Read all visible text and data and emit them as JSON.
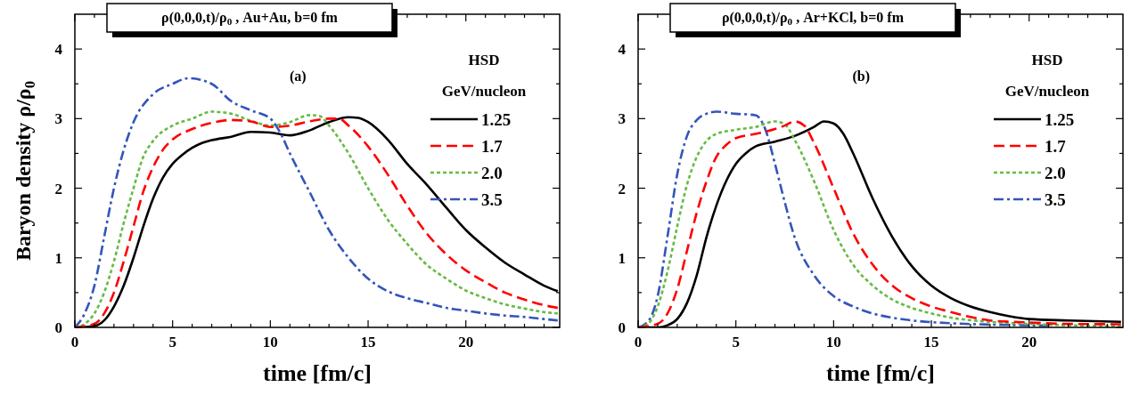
{
  "chart_data": [
    {
      "type": "line",
      "title": "ρ(0,0,0,t)/ρ$_{0}$ ,   Au+Au, b=0 fm",
      "xlabel": "time [fm/c]",
      "ylabel": "Baryon density ρ/ρ$_{0}$",
      "legend_title": "GeV/nucleon",
      "annotations": [
        "(a)",
        "HSD"
      ],
      "legend": "top right",
      "grid": false,
      "xlim": [
        0,
        24.8
      ],
      "ylim": [
        0,
        4.5
      ],
      "xticks": [
        0,
        {
          "value": 1,
          "label": null
        },
        {
          "value": 2,
          "label": null
        },
        {
          "value": 3,
          "label": null
        },
        {
          "value": 4,
          "label": null
        },
        5,
        {
          "value": 6,
          "label": null
        },
        {
          "value": 7,
          "label": null
        },
        {
          "value": 8,
          "label": null
        },
        {
          "value": 9,
          "label": null
        },
        10,
        {
          "value": 11,
          "label": null
        },
        {
          "value": 12,
          "label": null
        },
        {
          "value": 13,
          "label": null
        },
        {
          "value": 14,
          "label": null
        },
        15,
        {
          "value": 16,
          "label": null
        },
        {
          "value": 17,
          "label": null
        },
        {
          "value": 18,
          "label": null
        },
        {
          "value": 19,
          "label": null
        },
        20,
        {
          "value": 21,
          "label": null
        },
        {
          "value": 22,
          "label": null
        },
        {
          "value": 23,
          "label": null
        },
        {
          "value": 24,
          "label": null
        }
      ],
      "yticks": [
        0,
        {
          "value": 0.5,
          "label": null
        },
        1,
        {
          "value": 1.5,
          "label": null
        },
        2,
        {
          "value": 2.5,
          "label": null
        },
        3,
        {
          "value": 3.5,
          "label": null
        },
        4
      ],
      "series": [
        {
          "name": "1.25",
          "color": "#000000",
          "line_style": "solid",
          "x": [
            0,
            1,
            1.5,
            2,
            2.5,
            3,
            3.5,
            4,
            4.5,
            5,
            5.5,
            6,
            6.5,
            7,
            8,
            9,
            10,
            11,
            12,
            13,
            14,
            14.5,
            15,
            16,
            17,
            18,
            19,
            20,
            21,
            22,
            23,
            24,
            24.7
          ],
          "values": [
            0,
            0.02,
            0.1,
            0.3,
            0.6,
            1.0,
            1.45,
            1.85,
            2.15,
            2.35,
            2.48,
            2.58,
            2.65,
            2.69,
            2.74,
            2.81,
            2.8,
            2.76,
            2.83,
            2.95,
            3.02,
            3.01,
            2.95,
            2.7,
            2.35,
            2.05,
            1.72,
            1.4,
            1.15,
            0.93,
            0.76,
            0.6,
            0.52
          ]
        },
        {
          "name": "1.7",
          "color": "#ff0000",
          "line_style": "dashed",
          "x": [
            0,
            1,
            1.5,
            2,
            2.5,
            3,
            3.5,
            4,
            4.5,
            5,
            6,
            7,
            8,
            9,
            10,
            11,
            12,
            13,
            13.5,
            14,
            15,
            16,
            17,
            18,
            19,
            20,
            21,
            22,
            23,
            24,
            24.7
          ],
          "values": [
            0,
            0.05,
            0.2,
            0.5,
            0.95,
            1.45,
            1.95,
            2.3,
            2.55,
            2.7,
            2.85,
            2.94,
            2.98,
            2.96,
            2.88,
            2.9,
            2.96,
            3.0,
            3.0,
            2.9,
            2.6,
            2.2,
            1.75,
            1.35,
            1.05,
            0.82,
            0.65,
            0.5,
            0.4,
            0.32,
            0.28
          ]
        },
        {
          "name": "2.0",
          "color": "#66bb44",
          "line_style": "dotted",
          "x": [
            0,
            0.5,
            1,
            1.5,
            2,
            2.5,
            3,
            3.5,
            4,
            5,
            6,
            7,
            8,
            9,
            10,
            11,
            12,
            12.5,
            13,
            14,
            15,
            16,
            17,
            18,
            19,
            20,
            21,
            22,
            23,
            24,
            24.7
          ],
          "values": [
            0,
            0.05,
            0.2,
            0.5,
            0.95,
            1.5,
            2.0,
            2.45,
            2.68,
            2.9,
            3.0,
            3.1,
            3.07,
            2.97,
            2.9,
            2.95,
            3.05,
            3.04,
            2.9,
            2.5,
            2.0,
            1.55,
            1.2,
            0.9,
            0.7,
            0.53,
            0.42,
            0.33,
            0.27,
            0.22,
            0.2
          ]
        },
        {
          "name": "3.5",
          "color": "#3355bb",
          "line_style": "dashdot",
          "x": [
            0,
            0.5,
            1,
            1.5,
            2,
            2.5,
            3,
            4,
            5,
            5.8,
            7,
            8,
            9,
            10,
            10.5,
            11,
            12,
            13,
            14,
            15,
            16,
            17,
            18,
            19,
            20,
            21,
            22,
            23,
            24,
            24.7
          ],
          "values": [
            0,
            0.2,
            0.6,
            1.3,
            2.0,
            2.55,
            2.95,
            3.35,
            3.5,
            3.58,
            3.5,
            3.25,
            3.12,
            3.0,
            2.8,
            2.5,
            1.95,
            1.4,
            1.0,
            0.7,
            0.52,
            0.42,
            0.35,
            0.28,
            0.24,
            0.2,
            0.17,
            0.15,
            0.12,
            0.1
          ]
        }
      ]
    },
    {
      "type": "line",
      "title": "ρ(0,0,0,t)/ρ$_{0}$ ,   Ar+KCl, b=0 fm",
      "xlabel": "time [fm/c]",
      "legend_title": "GeV/nucleon",
      "annotations": [
        "(b)",
        "HSD"
      ],
      "legend": "top right",
      "grid": false,
      "xlim": [
        0,
        24.8
      ],
      "ylim": [
        0,
        4.5
      ],
      "xticks": [
        0,
        {
          "value": 1,
          "label": null
        },
        {
          "value": 2,
          "label": null
        },
        {
          "value": 3,
          "label": null
        },
        {
          "value": 4,
          "label": null
        },
        5,
        {
          "value": 6,
          "label": null
        },
        {
          "value": 7,
          "label": null
        },
        {
          "value": 8,
          "label": null
        },
        {
          "value": 9,
          "label": null
        },
        10,
        {
          "value": 11,
          "label": null
        },
        {
          "value": 12,
          "label": null
        },
        {
          "value": 13,
          "label": null
        },
        {
          "value": 14,
          "label": null
        },
        15,
        {
          "value": 16,
          "label": null
        },
        {
          "value": 17,
          "label": null
        },
        {
          "value": 18,
          "label": null
        },
        {
          "value": 19,
          "label": null
        },
        20,
        {
          "value": 21,
          "label": null
        },
        {
          "value": 22,
          "label": null
        },
        {
          "value": 23,
          "label": null
        },
        {
          "value": 24,
          "label": null
        }
      ],
      "yticks": [
        0,
        {
          "value": 0.5,
          "label": null
        },
        1,
        {
          "value": 1.5,
          "label": null
        },
        2,
        {
          "value": 2.5,
          "label": null
        },
        3,
        {
          "value": 3.5,
          "label": null
        },
        4
      ],
      "series": [
        {
          "name": "1.25",
          "color": "#000000",
          "line_style": "solid",
          "x": [
            0,
            1,
            1.5,
            2,
            2.5,
            3,
            3.5,
            4,
            4.5,
            5,
            5.5,
            6,
            7,
            8,
            9,
            9.5,
            10,
            10.5,
            11,
            12,
            13,
            14,
            15,
            16,
            17,
            18,
            19,
            20,
            22,
            24.7
          ],
          "values": [
            0,
            0,
            0.03,
            0.12,
            0.35,
            0.75,
            1.3,
            1.75,
            2.1,
            2.35,
            2.5,
            2.6,
            2.67,
            2.75,
            2.88,
            2.96,
            2.93,
            2.78,
            2.5,
            1.85,
            1.3,
            0.88,
            0.6,
            0.42,
            0.3,
            0.22,
            0.16,
            0.12,
            0.1,
            0.08
          ]
        },
        {
          "name": "1.7",
          "color": "#ff0000",
          "line_style": "dashed",
          "x": [
            0,
            1,
            1.5,
            2,
            2.5,
            3,
            3.5,
            4,
            4.5,
            5,
            6,
            7,
            7.5,
            8,
            8.5,
            9,
            10,
            11,
            12,
            13,
            14,
            15,
            16,
            17,
            18,
            20,
            22,
            24.7
          ],
          "values": [
            0,
            0.05,
            0.2,
            0.55,
            1.1,
            1.65,
            2.1,
            2.45,
            2.62,
            2.72,
            2.78,
            2.85,
            2.9,
            2.96,
            2.9,
            2.65,
            2.0,
            1.35,
            0.9,
            0.6,
            0.42,
            0.3,
            0.22,
            0.15,
            0.1,
            0.07,
            0.05,
            0.045
          ]
        },
        {
          "name": "2.0",
          "color": "#66bb44",
          "line_style": "dotted",
          "x": [
            0,
            0.5,
            1,
            1.5,
            2,
            2.5,
            3,
            3.5,
            4,
            5,
            6,
            7,
            7.5,
            8,
            9,
            10,
            11,
            12,
            13,
            14,
            15,
            16,
            18,
            20,
            24.7
          ],
          "values": [
            0,
            0.05,
            0.3,
            0.8,
            1.45,
            2.05,
            2.45,
            2.68,
            2.78,
            2.84,
            2.88,
            2.96,
            2.92,
            2.7,
            2.1,
            1.4,
            0.9,
            0.6,
            0.4,
            0.28,
            0.2,
            0.14,
            0.08,
            0.05,
            0.015
          ]
        },
        {
          "name": "3.5",
          "color": "#3355bb",
          "line_style": "dashdot",
          "x": [
            0,
            0.5,
            1,
            1.5,
            2,
            2.5,
            3,
            3.5,
            4,
            5,
            6,
            6.5,
            7,
            7.5,
            8,
            9,
            10,
            11,
            12,
            13,
            14,
            16,
            18,
            20,
            21
          ],
          "values": [
            0,
            0.08,
            0.45,
            1.3,
            2.2,
            2.75,
            2.98,
            3.07,
            3.1,
            3.07,
            3.05,
            2.85,
            2.35,
            1.8,
            1.3,
            0.75,
            0.45,
            0.3,
            0.2,
            0.14,
            0.1,
            0.06,
            0.04,
            0.03,
            0.025
          ]
        }
      ]
    }
  ]
}
